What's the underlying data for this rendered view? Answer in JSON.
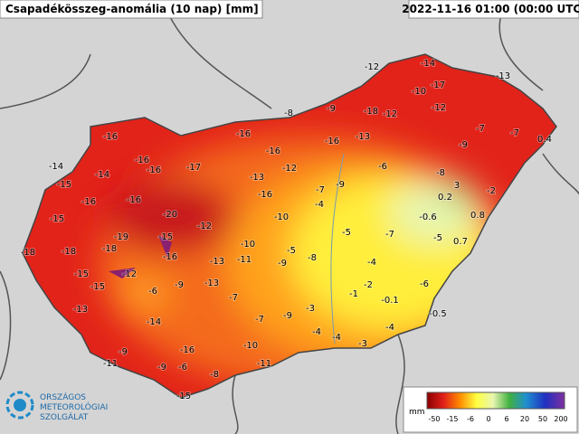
{
  "header": {
    "title": "Csapadékösszeg-anomália (10 nap) [mm]",
    "timestamp": "2022-11-16 01:00 (00:00 UTC)"
  },
  "logo": {
    "lines": [
      "ORSZÁGOS",
      "METEOROLÓGIAI",
      "SZOLGÁLAT"
    ]
  },
  "legend": {
    "unit": "mm",
    "ticks": [
      -50,
      -15,
      -6,
      0,
      6,
      20,
      50,
      200
    ]
  },
  "stations": [
    -12,
    -14,
    -13,
    -10,
    -17,
    -8,
    -9,
    -18,
    -12,
    -12,
    -7,
    -7,
    0.4,
    -16,
    -16,
    -16,
    -13,
    -9,
    -16,
    -16,
    -17,
    -16,
    -12,
    -6,
    -8,
    -14,
    -14,
    -15,
    -13,
    -16,
    -7,
    -9,
    3,
    -2,
    0.2,
    -16,
    -16,
    -4,
    0.8,
    -0.6,
    -15,
    -20,
    -12,
    -10,
    -5,
    -7,
    -5,
    0.7,
    -18,
    -18,
    -19,
    -15,
    -18,
    -16,
    -10,
    -11,
    -13,
    -5,
    -8,
    -9,
    -4,
    -15,
    -12,
    -15,
    -6,
    -9,
    -13,
    -7,
    -2,
    -1,
    -0.1,
    -6,
    -13,
    -14,
    -7,
    -9,
    -3,
    -0.5,
    -4,
    -4,
    -4,
    -3,
    -9,
    -16,
    -10,
    -11,
    -9,
    -6,
    -8,
    -11,
    -15
  ]
}
